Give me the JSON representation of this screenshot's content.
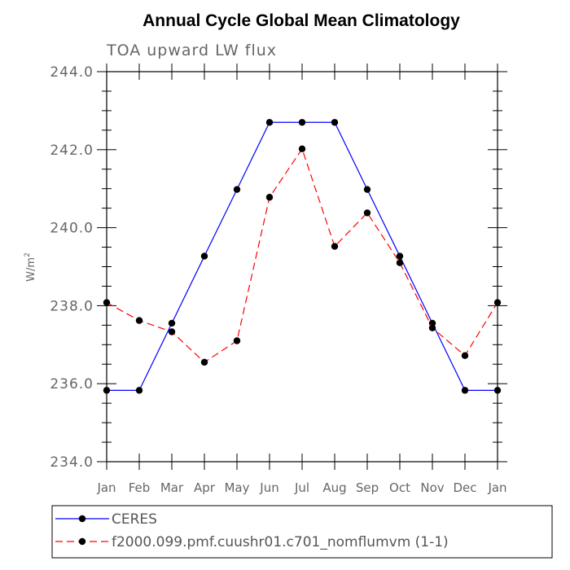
{
  "chart_data": {
    "type": "line",
    "title": "Annual Cycle Global Mean Climatology",
    "subtitle": "TOA upward LW flux",
    "ylabel_base": "W/m",
    "ylabel_sup": "2",
    "ylim": [
      234.0,
      244.0
    ],
    "yticks": [
      234.0,
      236.0,
      238.0,
      240.0,
      242.0,
      244.0
    ],
    "ytick_labels": [
      "234.0",
      "236.0",
      "238.0",
      "240.0",
      "242.0",
      "244.0"
    ],
    "categories": [
      "Jan",
      "Feb",
      "Mar",
      "Apr",
      "May",
      "Jun",
      "Jul",
      "Aug",
      "Sep",
      "Oct",
      "Nov",
      "Dec",
      "Jan"
    ],
    "series": [
      {
        "name": "CERES",
        "color": "#0000ff",
        "dash": "solid",
        "values": [
          235.83,
          235.83,
          237.55,
          239.27,
          240.98,
          242.7,
          242.7,
          242.7,
          240.98,
          239.27,
          237.55,
          235.83,
          235.83
        ]
      },
      {
        "name": "f2000.099.pmf.cuushr01.c701_nomflumvm (1-1)",
        "color": "#ff0000",
        "dash": "dashed",
        "values": [
          238.08,
          237.62,
          237.33,
          236.55,
          237.1,
          240.78,
          242.02,
          239.52,
          240.38,
          239.1,
          237.43,
          236.72,
          238.08
        ]
      }
    ],
    "legend_position": "bottom"
  }
}
